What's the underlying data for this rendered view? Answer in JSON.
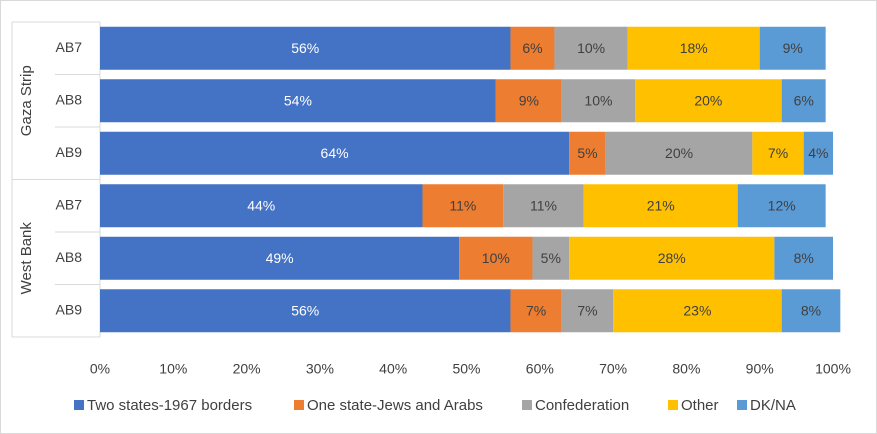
{
  "chart_data": {
    "type": "bar",
    "orientation": "horizontal",
    "stacked": "percent",
    "groups": [
      {
        "name": "Gaza Strip",
        "categories": [
          "AB7",
          "AB8",
          "AB9"
        ]
      },
      {
        "name": "West Bank",
        "categories": [
          "AB7",
          "AB8",
          "AB9"
        ]
      }
    ],
    "categories": [
      "Gaza Strip AB7",
      "Gaza Strip AB8",
      "Gaza Strip AB9",
      "West Bank AB7",
      "West Bank AB8",
      "West Bank AB9"
    ],
    "series": [
      {
        "name": "Two states-1967 borders",
        "color": "#4472C4",
        "label_color": "#ffffff",
        "values": [
          56,
          54,
          64,
          44,
          49,
          56
        ]
      },
      {
        "name": "One state-Jews and Arabs",
        "color": "#ED7D31",
        "label_color": "#404040",
        "values": [
          6,
          9,
          5,
          11,
          10,
          7
        ]
      },
      {
        "name": "Confederation",
        "color": "#A5A5A5",
        "label_color": "#404040",
        "values": [
          10,
          10,
          20,
          11,
          5,
          7
        ]
      },
      {
        "name": "Other",
        "color": "#FFC000",
        "label_color": "#404040",
        "values": [
          18,
          20,
          7,
          21,
          28,
          23
        ]
      },
      {
        "name": "DK/NA",
        "color": "#5B9BD5",
        "label_color": "#404040",
        "values": [
          9,
          6,
          4,
          12,
          8,
          8
        ]
      }
    ],
    "xlim": [
      0,
      100
    ],
    "x_ticks": [
      "0%",
      "10%",
      "20%",
      "30%",
      "40%",
      "50%",
      "60%",
      "70%",
      "80%",
      "90%",
      "100%"
    ],
    "legend_position": "bottom",
    "grid": false,
    "title": "",
    "xlabel": "",
    "ylabel": ""
  }
}
